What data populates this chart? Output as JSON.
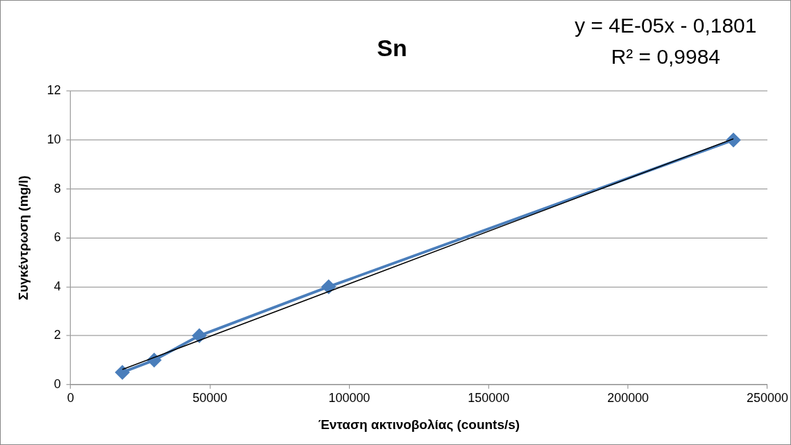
{
  "chart_data": {
    "type": "line",
    "title": "Sn",
    "xlabel": "Ένταση ακτινοβολίας (counts/s)",
    "ylabel": "Συγκέντρωση (mg/l)",
    "annotations": [
      "y = 4E-05x - 0,1801",
      "R² = 0,9984"
    ],
    "x": [
      18600,
      30000,
      46200,
      92600,
      237800
    ],
    "series": [
      {
        "color": "#4a7ebb",
        "values": [
          0.5,
          1,
          2,
          4,
          10
        ]
      },
      {
        "type": "line",
        "x": [
          18600,
          237800
        ],
        "values": [
          0.62,
          10.05
        ],
        "color": "#000000",
        "marker": "none"
      }
    ],
    "xlim": [
      0,
      250000
    ],
    "xticks": [
      0,
      50000,
      100000,
      150000,
      200000,
      250000
    ],
    "ylim": [
      0,
      12
    ],
    "yticks": [
      0,
      2,
      4,
      6,
      8,
      10,
      12
    ],
    "grid": "y",
    "legend": false,
    "marker": "diamond",
    "line_style": "solid"
  }
}
